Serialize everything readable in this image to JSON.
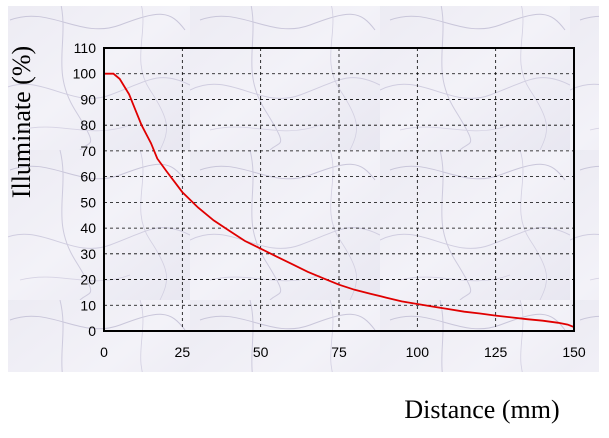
{
  "chart_data": {
    "type": "line",
    "xlabel": "Distance (mm)",
    "ylabel": "Illuminate (%)",
    "xlim": [
      0,
      150
    ],
    "ylim": [
      0,
      110
    ],
    "xticks": [
      0,
      25,
      50,
      75,
      100,
      125,
      150
    ],
    "yticks": [
      0,
      10,
      20,
      30,
      40,
      50,
      60,
      70,
      80,
      90,
      100,
      110
    ],
    "grid": true,
    "line_color": "#e00000",
    "series": [
      {
        "x": [
          0,
          3,
          5,
          8,
          10,
          12,
          15,
          17,
          20,
          25,
          30,
          35,
          40,
          45,
          50,
          55,
          60,
          65,
          70,
          75,
          80,
          85,
          90,
          95,
          100,
          105,
          110,
          115,
          120,
          125,
          130,
          135,
          140,
          145,
          148,
          150
        ],
        "y": [
          100,
          100,
          98,
          92,
          86,
          80,
          73,
          67,
          62,
          54,
          48,
          43,
          39,
          35,
          32,
          29,
          26,
          23,
          20.5,
          18,
          16,
          14.5,
          13,
          11.5,
          10.5,
          9.5,
          8.5,
          7.5,
          6.8,
          6,
          5.3,
          4.6,
          4,
          3.2,
          2.5,
          1.5
        ]
      }
    ]
  }
}
